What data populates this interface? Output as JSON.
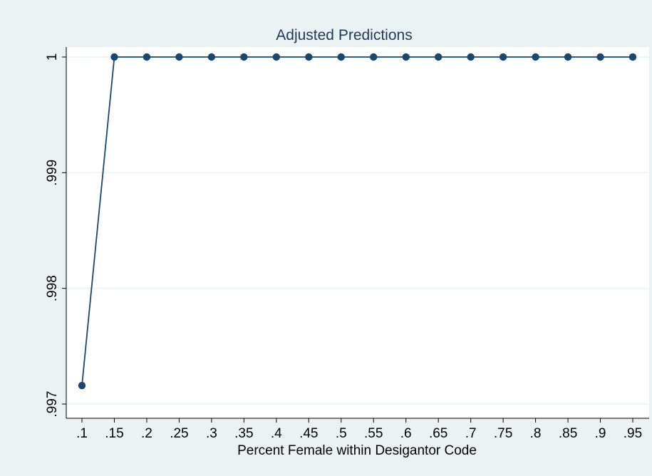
{
  "chart_data": {
    "type": "line",
    "title": "Adjusted Predictions",
    "xlabel": "Percent Female within Desigantor Code",
    "ylabel": "",
    "x_tick_labels": [
      ".1",
      ".15",
      ".2",
      ".25",
      ".3",
      ".35",
      ".4",
      ".45",
      ".5",
      ".55",
      ".6",
      ".65",
      ".7",
      ".75",
      ".8",
      ".85",
      ".9",
      ".95"
    ],
    "x": [
      0.1,
      0.15,
      0.2,
      0.25,
      0.3,
      0.35,
      0.4,
      0.45,
      0.5,
      0.55,
      0.6,
      0.65,
      0.7,
      0.75,
      0.8,
      0.85,
      0.9,
      0.95
    ],
    "y_ticks": [
      0.997,
      0.998,
      0.999,
      1
    ],
    "y_tick_labels": [
      ".997",
      ".998",
      ".999",
      "1"
    ],
    "series": [
      {
        "values": [
          0.99716,
          1,
          1,
          1,
          1,
          1,
          1,
          1,
          1,
          1,
          1,
          1,
          1,
          1,
          1,
          1,
          1,
          1
        ]
      }
    ],
    "xlim": [
      0.1,
      0.95
    ],
    "ylim": [
      0.997,
      1
    ],
    "grid": true,
    "legend": "none",
    "colors": {
      "background": "#eaf2f3",
      "plot_area": "#ffffff",
      "gridline": "#eaf2f3",
      "series": "#1a476f",
      "title": "#1f3a5a"
    }
  }
}
